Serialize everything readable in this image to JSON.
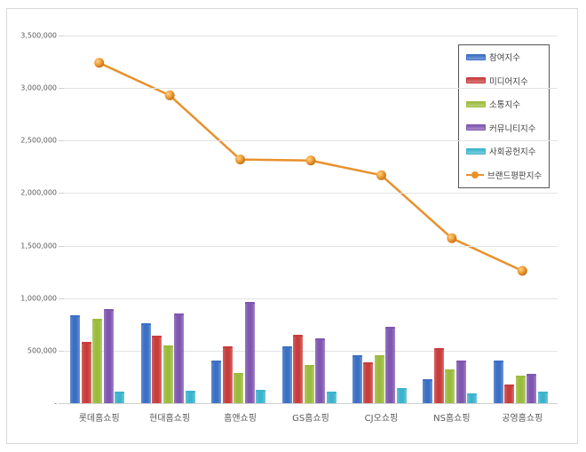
{
  "chart_data": {
    "type": "bar",
    "title": "",
    "xlabel": "",
    "ylabel": "",
    "ylim": [
      0,
      3500000
    ],
    "yticks": [
      "-",
      "500,000",
      "1,000,000",
      "1,500,000",
      "2,000,000",
      "2,500,000",
      "3,000,000",
      "3,500,000"
    ],
    "grid": true,
    "legend_position": "upper-right-inside",
    "categories": [
      "롯데홈쇼핑",
      "현대홈쇼핑",
      "홈앤쇼핑",
      "GS홈쇼핑",
      "CJ오쇼핑",
      "NS홈쇼핑",
      "공영홈쇼핑"
    ],
    "series": [
      {
        "name": "참여지수",
        "type": "bar",
        "color": "#3a6fc4",
        "values": [
          840000,
          760000,
          410000,
          540000,
          460000,
          230000,
          410000
        ]
      },
      {
        "name": "미디어지수",
        "type": "bar",
        "color": "#c83c3c",
        "values": [
          580000,
          640000,
          540000,
          650000,
          390000,
          520000,
          180000
        ]
      },
      {
        "name": "소통지수",
        "type": "bar",
        "color": "#9bbb3c",
        "values": [
          800000,
          550000,
          290000,
          360000,
          460000,
          320000,
          260000
        ]
      },
      {
        "name": "커뮤니티지수",
        "type": "bar",
        "color": "#7f56b0",
        "values": [
          900000,
          850000,
          960000,
          620000,
          730000,
          410000,
          280000
        ]
      },
      {
        "name": "사회공헌지수",
        "type": "bar",
        "color": "#3bb3cc",
        "values": [
          110000,
          120000,
          130000,
          110000,
          140000,
          90000,
          110000
        ]
      },
      {
        "name": "브랜드평판지수",
        "type": "line",
        "color": "#e8912c",
        "values": [
          3240000,
          2930000,
          2320000,
          2310000,
          2170000,
          1570000,
          1260000
        ]
      }
    ]
  }
}
